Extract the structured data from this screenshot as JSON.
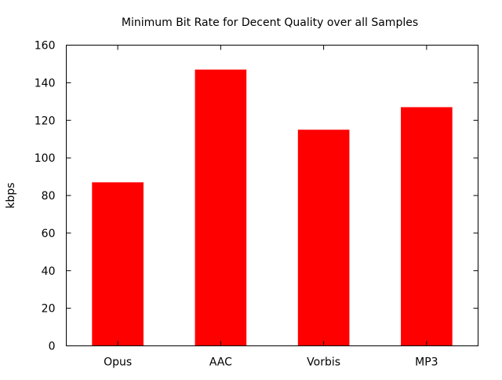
{
  "chart_data": {
    "type": "bar",
    "title": "Minimum Bit Rate for Decent Quality over all Samples",
    "xlabel": "",
    "ylabel": "kbps",
    "categories": [
      "Opus",
      "AAC",
      "Vorbis",
      "MP3"
    ],
    "values": [
      87,
      147,
      115,
      127
    ],
    "ylim": [
      0,
      160
    ],
    "yticks": [
      0,
      20,
      40,
      60,
      80,
      100,
      120,
      140,
      160
    ],
    "ytick_labels": [
      "0",
      "20",
      "40",
      "60",
      "80",
      "100",
      "120",
      "140",
      "160"
    ],
    "bar_color": "#ff0000",
    "grid": false,
    "legend": "none"
  }
}
